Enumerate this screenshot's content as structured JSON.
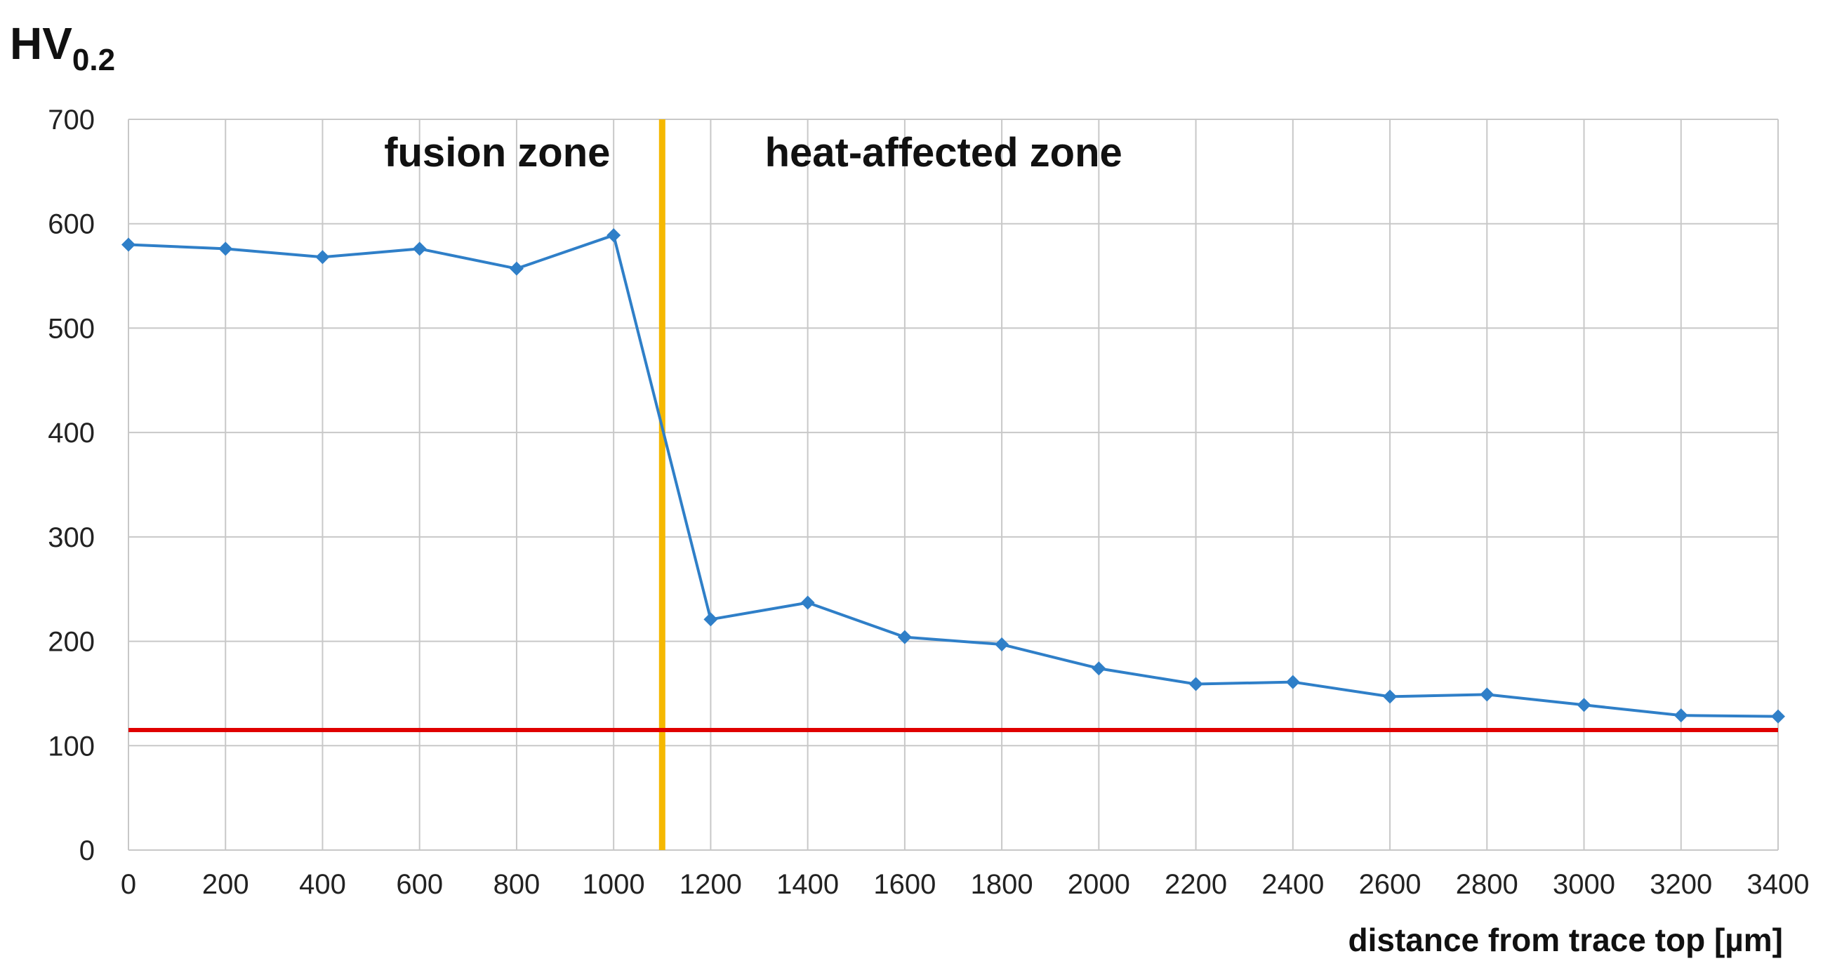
{
  "chart_data": {
    "type": "line",
    "ylabel_main": "HV",
    "ylabel_sub": "0.2",
    "xlabel": "distance from trace top [µm]",
    "xlim": [
      0,
      3400
    ],
    "ylim": [
      0,
      700
    ],
    "xticks": [
      0,
      200,
      400,
      600,
      800,
      1000,
      1200,
      1400,
      1600,
      1800,
      2000,
      2200,
      2400,
      2600,
      2800,
      3000,
      3200,
      3400
    ],
    "yticks": [
      0,
      100,
      200,
      300,
      400,
      500,
      600,
      700
    ],
    "grid": true,
    "series": [
      {
        "name": "hardness",
        "color": "#2f7fc8",
        "x": [
          0,
          200,
          400,
          600,
          800,
          1000,
          1200,
          1400,
          1600,
          1800,
          2000,
          2200,
          2400,
          2600,
          2800,
          3000,
          3200,
          3400
        ],
        "y": [
          580,
          576,
          568,
          576,
          557,
          589,
          221,
          237,
          204,
          197,
          174,
          159,
          161,
          147,
          149,
          139,
          129,
          128
        ]
      }
    ],
    "reference_lines": [
      {
        "name": "boundary",
        "orientation": "vertical",
        "value": 1100,
        "color": "#f5b800"
      },
      {
        "name": "base-hardness",
        "orientation": "horizontal",
        "value": 115,
        "color": "#e00000"
      }
    ],
    "annotations": [
      {
        "name": "fusion-zone-label",
        "text": "fusion zone",
        "x": 760,
        "y": 655
      },
      {
        "name": "heat-affected-zone-label",
        "text": "heat-affected zone",
        "x": 1680,
        "y": 655
      }
    ]
  }
}
